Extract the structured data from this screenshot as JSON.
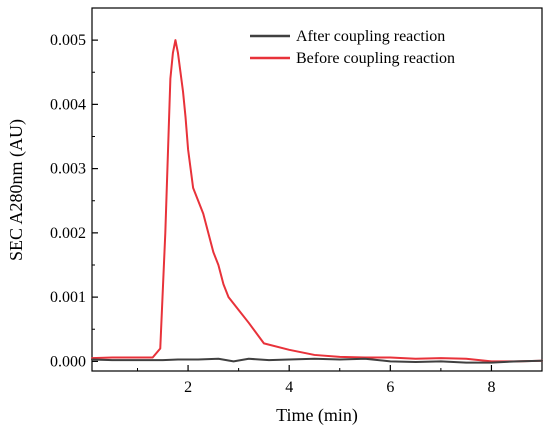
{
  "chart_data": {
    "type": "line",
    "title": "",
    "xlabel": "Time (min)",
    "ylabel": "SEC A280nm (AU)",
    "xlim": [
      0.1,
      9.0
    ],
    "ylim": [
      -0.00015,
      0.0055
    ],
    "x_ticks": [
      2,
      4,
      6,
      8
    ],
    "x_tick_labels": [
      "2",
      "4",
      "6",
      "8"
    ],
    "y_ticks": [
      0.0,
      0.001,
      0.002,
      0.003,
      0.004,
      0.005
    ],
    "y_tick_labels": [
      "0.000",
      "0.001",
      "0.002",
      "0.003",
      "0.004",
      "0.005"
    ],
    "grid": false,
    "legend_position": "top-right",
    "series": [
      {
        "name": "After coupling reaction",
        "color": "#404040",
        "x": [
          0.1,
          0.5,
          1.0,
          1.5,
          1.8,
          2.2,
          2.6,
          2.9,
          3.2,
          3.6,
          4.0,
          4.5,
          5.0,
          5.5,
          6.0,
          6.5,
          7.0,
          7.5,
          8.0,
          8.5,
          9.0
        ],
        "y": [
          3e-05,
          2e-05,
          2e-05,
          2e-05,
          3e-05,
          3e-05,
          4e-05,
          0.0,
          4e-05,
          2e-05,
          3e-05,
          4e-05,
          3e-05,
          4e-05,
          0.0,
          -1e-05,
          0.0,
          -2e-05,
          -2e-05,
          0.0,
          1e-05
        ]
      },
      {
        "name": "Before coupling reaction",
        "color": "#e8323a",
        "x": [
          0.1,
          0.5,
          1.0,
          1.3,
          1.45,
          1.55,
          1.65,
          1.7,
          1.75,
          1.8,
          1.85,
          1.9,
          1.95,
          2.0,
          2.05,
          2.1,
          2.2,
          2.3,
          2.4,
          2.5,
          2.6,
          2.7,
          2.8,
          3.0,
          3.2,
          3.5,
          4.0,
          4.5,
          5.0,
          5.5,
          6.0,
          6.5,
          7.0,
          7.5,
          8.0,
          8.5,
          9.0
        ],
        "y": [
          5e-05,
          6e-05,
          6e-05,
          6e-05,
          0.0002,
          0.002,
          0.0044,
          0.0048,
          0.005,
          0.0048,
          0.0045,
          0.0042,
          0.0038,
          0.0033,
          0.003,
          0.0027,
          0.0025,
          0.0023,
          0.002,
          0.0017,
          0.0015,
          0.0012,
          0.001,
          0.0008,
          0.0006,
          0.00028,
          0.00018,
          0.0001,
          7e-05,
          6e-05,
          6e-05,
          4e-05,
          5e-05,
          4e-05,
          0.0,
          0.0,
          1e-05
        ]
      }
    ]
  }
}
